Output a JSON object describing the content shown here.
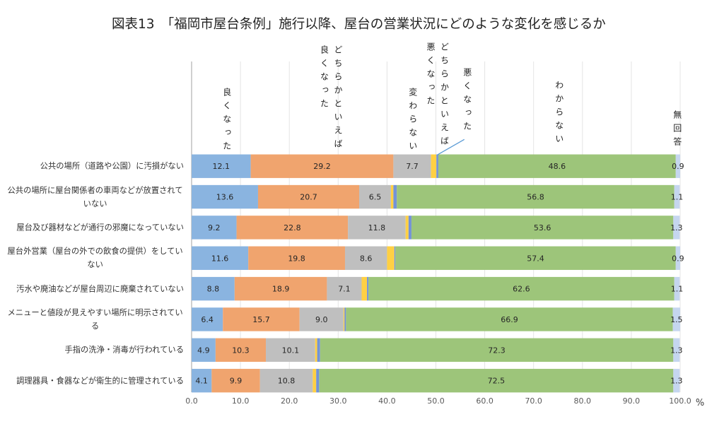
{
  "chart_data": {
    "type": "bar",
    "orientation": "horizontal",
    "stacked": true,
    "title": "図表13　「福岡市屋台条例」施行以降、屋台の営業状況にどのような変化を感じるか",
    "xlabel": "",
    "ylabel": "",
    "xunit": "%",
    "xlim": [
      0,
      100
    ],
    "xticks": [
      0,
      10,
      20,
      30,
      40,
      50,
      60,
      70,
      80,
      90,
      100
    ],
    "xtick_labels": [
      "0.0",
      "10.0",
      "20.0",
      "30.0",
      "40.0",
      "50.0",
      "60.0",
      "70.0",
      "80.0",
      "90.0",
      "100.0"
    ],
    "grid": true,
    "legend_placement": "top (vertical series labels above bars)",
    "categories": [
      "公共の場所（道路や公園）に汚損がない",
      "公共の場所に屋台関係者の車両などが放置されていない",
      "屋台及び器材などが通行の邪魔になっていない",
      "屋台外営業（屋台の外での飲食の提供）をしていない",
      "汚水や廃油などが屋台周辺に廃棄されていない",
      "メニューと値段が見えやすい場所に明示されている",
      "手指の洗浄・消毒が行われている",
      "調理器具・食器などが衛生的に管理されている"
    ],
    "series": [
      {
        "name": "良くなった",
        "color": "#8AB4E0",
        "values": [
          12.1,
          13.6,
          9.2,
          11.6,
          8.8,
          6.4,
          4.9,
          4.1
        ],
        "value_labels": [
          "12.1",
          "13.6",
          "9.2",
          "11.6",
          "8.8",
          "6.4",
          "4.9",
          "4.1"
        ]
      },
      {
        "name": "どちらかといえば良くなった",
        "color": "#F0A46E",
        "values": [
          29.2,
          20.7,
          22.8,
          19.8,
          18.9,
          15.7,
          10.3,
          9.9
        ],
        "value_labels": [
          "29.2",
          "20.7",
          "22.8",
          "19.8",
          "18.9",
          "15.7",
          "10.3",
          "9.9"
        ]
      },
      {
        "name": "変わらない",
        "color": "#BFBFBF",
        "values": [
          7.7,
          6.5,
          11.8,
          8.6,
          7.1,
          9.0,
          10.1,
          10.8
        ],
        "value_labels": [
          "7.7",
          "6.5",
          "11.8",
          "8.6",
          "7.1",
          "9.0",
          "10.1",
          "10.8"
        ]
      },
      {
        "name": "どちらかといえば悪くなった",
        "color": "#FFD044",
        "values": [
          1.1,
          0.5,
          0.6,
          1.5,
          1.1,
          0.2,
          0.4,
          0.7
        ]
      },
      {
        "name": "悪くなった",
        "color": "#7393D6",
        "values": [
          0.4,
          0.7,
          0.6,
          0.2,
          0.3,
          0.3,
          0.6,
          0.6
        ]
      },
      {
        "name": "わからない",
        "color": "#9DC57A",
        "values": [
          48.6,
          56.8,
          53.6,
          57.4,
          62.6,
          66.9,
          72.3,
          72.5
        ],
        "value_labels": [
          "48.6",
          "56.8",
          "53.6",
          "57.4",
          "62.6",
          "66.9",
          "72.3",
          "72.5"
        ]
      },
      {
        "name": "無回答",
        "color": "#C5D6EF",
        "values": [
          0.9,
          1.1,
          1.3,
          0.9,
          1.1,
          1.5,
          1.3,
          1.3
        ],
        "value_labels": [
          "0.9",
          "1.1",
          "1.3",
          "0.9",
          "1.1",
          "1.5",
          "1.3",
          "1.3"
        ]
      }
    ]
  }
}
